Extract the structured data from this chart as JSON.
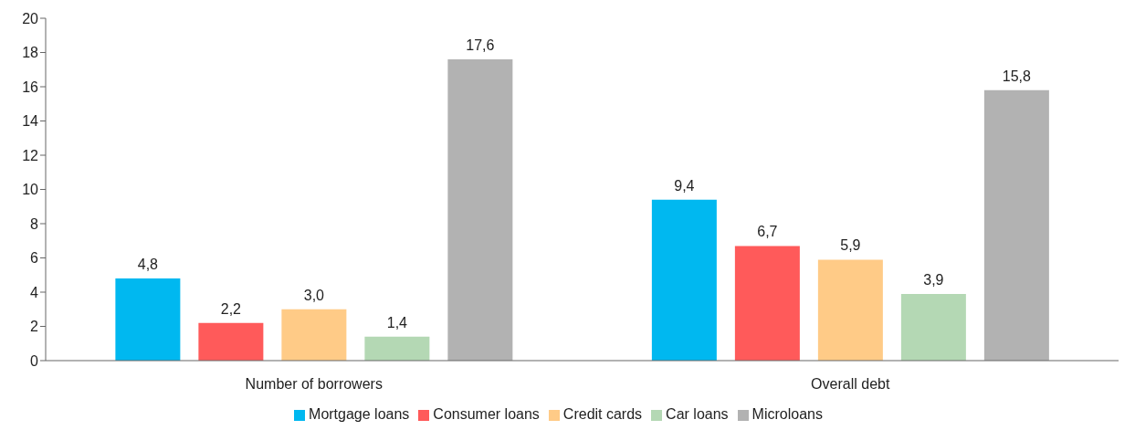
{
  "chart_data": {
    "type": "bar",
    "categories": [
      "Number of borrowers",
      "Overall debt"
    ],
    "series": [
      {
        "name": "Mortgage loans",
        "color": "#00b8f0",
        "values": [
          4.8,
          9.4
        ],
        "value_labels": [
          "4,8",
          "9,4"
        ]
      },
      {
        "name": "Consumer loans",
        "color": "#ff5a5a",
        "values": [
          2.2,
          6.7
        ],
        "value_labels": [
          "2,2",
          "6,7"
        ]
      },
      {
        "name": "Credit cards",
        "color": "#ffcb87",
        "values": [
          3.0,
          5.9
        ],
        "value_labels": [
          "3,0",
          "5,9"
        ]
      },
      {
        "name": "Car loans",
        "color": "#b4d8b4",
        "values": [
          1.4,
          3.9
        ],
        "value_labels": [
          "1,4",
          "3,9"
        ]
      },
      {
        "name": "Microloans",
        "color": "#b2b2b2",
        "values": [
          17.6,
          15.8
        ],
        "value_labels": [
          "17,6",
          "15,8"
        ]
      }
    ],
    "ylim": [
      0,
      20
    ],
    "yticks": [
      0,
      2,
      4,
      6,
      8,
      10,
      12,
      14,
      16,
      18,
      20
    ],
    "grid": false,
    "legend": "bottom"
  }
}
